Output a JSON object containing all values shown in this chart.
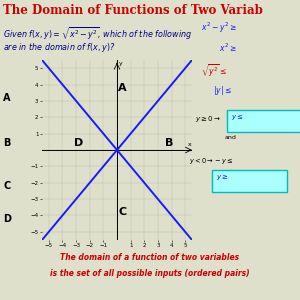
{
  "title": "The Domain of Functions of Two Variab",
  "title_color": "#cc0000",
  "title_fontsize": 8.5,
  "bg_color": "#dfe0cb",
  "grid_color": "#c0c2aa",
  "line_color": "#1a1aff",
  "subtitle1": "Given $f(x, y) = \\sqrt{x^2 - y^2}$, which of the following",
  "subtitle2": "are in the domain of $f(x, y)$?",
  "bottom_text1": "The domain of a function of two variables",
  "bottom_text2": "is the set of all possible inputs (ordered pairs)",
  "bottom_text_color": "#cc0000",
  "xlim": [
    -5.5,
    5.5
  ],
  "ylim": [
    -5.5,
    5.5
  ],
  "xticks": [
    -5,
    -4,
    -3,
    -2,
    -1,
    1,
    2,
    3,
    4,
    5
  ],
  "yticks": [
    -5,
    -4,
    -3,
    -2,
    -1,
    1,
    2,
    3,
    4,
    5
  ]
}
